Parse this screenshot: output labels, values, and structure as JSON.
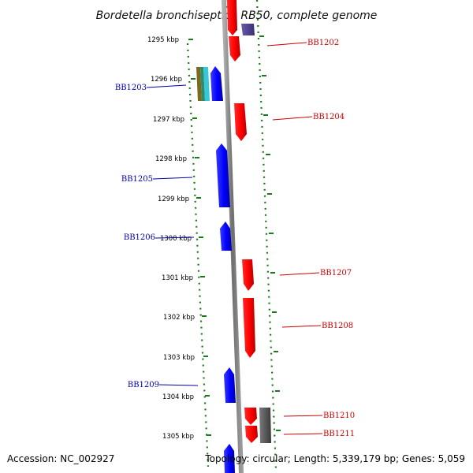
{
  "title": "Bordetella bronchiseptica RB50, complete genome",
  "footer": {
    "accession": "Accession: NC_002927",
    "topology": "Topology: circular; Length: 5,339,179 bp; Genes: 5,059"
  },
  "scale": {
    "unit": "kbp",
    "ticks": [
      "1295 kbp",
      "1296 kbp",
      "1297 kbp",
      "1298 kbp",
      "1299 kbp",
      "1300 kbp",
      "1301 kbp",
      "1302 kbp",
      "1303 kbp",
      "1304 kbp",
      "1305 kbp"
    ]
  },
  "colors": {
    "forward_strand": "#ff0000",
    "reverse_strand": "#0000ff",
    "forward_label": "#cc0000",
    "reverse_label": "#0000aa",
    "backbone": "#888888",
    "tick": "#1a7a1a",
    "other_feature": "#555555"
  },
  "genes": [
    {
      "label": "BB1202",
      "strand": "forward"
    },
    {
      "label": "BB1203",
      "strand": "reverse"
    },
    {
      "label": "BB1204",
      "strand": "forward"
    },
    {
      "label": "BB1205",
      "strand": "reverse"
    },
    {
      "label": "BB1206",
      "strand": "reverse"
    },
    {
      "label": "BB1207",
      "strand": "forward"
    },
    {
      "label": "BB1208",
      "strand": "forward"
    },
    {
      "label": "BB1209",
      "strand": "reverse"
    },
    {
      "label": "BB1210",
      "strand": "forward"
    },
    {
      "label": "BB1211",
      "strand": "forward"
    }
  ]
}
